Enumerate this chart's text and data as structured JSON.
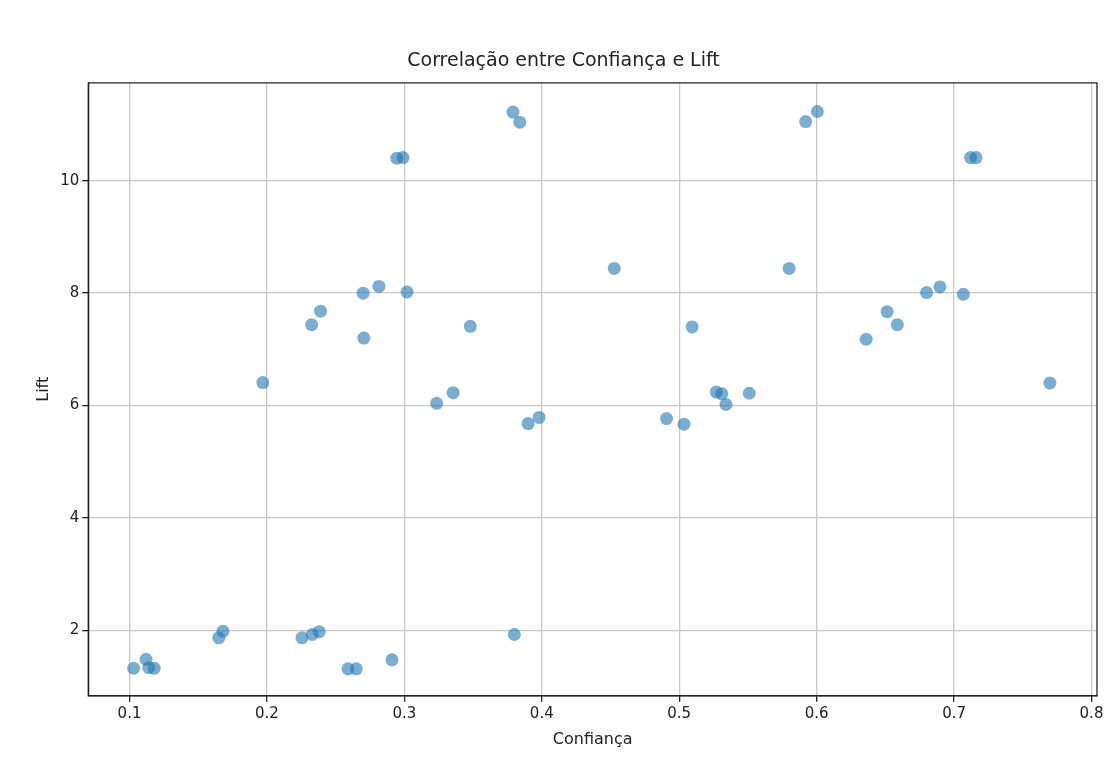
{
  "chart_data": {
    "type": "scatter",
    "title": "Correlação entre Confiança e Lift",
    "xlabel": "Confiança",
    "ylabel": "Lift",
    "xlim": [
      0.07,
      0.804
    ],
    "ylim": [
      0.84,
      11.74
    ],
    "xticks": [
      {
        "value": 0.1,
        "label": "0.1"
      },
      {
        "value": 0.2,
        "label": "0.2"
      },
      {
        "value": 0.3,
        "label": "0.3"
      },
      {
        "value": 0.4,
        "label": "0.4"
      },
      {
        "value": 0.5,
        "label": "0.5"
      },
      {
        "value": 0.6,
        "label": "0.6"
      },
      {
        "value": 0.7,
        "label": "0.7"
      },
      {
        "value": 0.8,
        "label": "0.8"
      }
    ],
    "yticks": [
      2,
      4,
      6,
      8,
      10
    ],
    "grid": true,
    "marker": "circle",
    "series": [
      {
        "color": "#1f77b4",
        "x": [
          0.103,
          0.112,
          0.114,
          0.118,
          0.165,
          0.168,
          0.197,
          0.2255,
          0.233,
          0.238,
          0.259,
          0.265,
          0.291,
          0.3235,
          0.3355,
          0.38,
          0.39,
          0.398,
          0.2325,
          0.239,
          0.27,
          0.2705,
          0.2815,
          0.2945,
          0.299,
          0.302,
          0.348,
          0.379,
          0.384,
          0.4527,
          0.5094,
          0.58,
          0.592,
          0.6005,
          0.712,
          0.716,
          0.636,
          0.6513,
          0.6587,
          0.68,
          0.6897,
          0.7067,
          0.7697,
          0.4908,
          0.5035,
          0.527,
          0.531,
          0.534,
          0.551
        ],
        "values": [
          1.33,
          1.49,
          1.34,
          1.33,
          1.87,
          1.99,
          6.41,
          1.87,
          1.93,
          1.98,
          1.32,
          1.32,
          1.48,
          6.04,
          6.23,
          1.93,
          5.68,
          5.79,
          7.44,
          7.68,
          8.0,
          7.2,
          8.12,
          10.4,
          10.41,
          8.02,
          7.41,
          11.22,
          11.04,
          8.44,
          7.4,
          8.44,
          11.05,
          11.23,
          10.41,
          10.41,
          7.18,
          7.67,
          7.44,
          8.01,
          8.11,
          7.98,
          6.4,
          5.77,
          5.67,
          6.24,
          6.21,
          6.02,
          6.22
        ]
      }
    ]
  }
}
